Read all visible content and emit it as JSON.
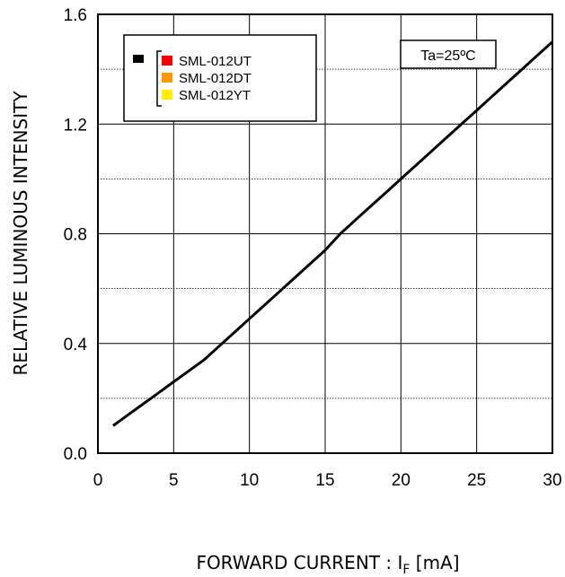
{
  "chart_data": {
    "type": "line",
    "title": "",
    "xlabel_main": "FORWARD CURRENT : I",
    "xlabel_sub": "F",
    "xlabel_unit": " [mA]",
    "ylabel": "RELATIVE LUMINOUS INTENSITY",
    "xlim": [
      0,
      30
    ],
    "ylim": [
      0.0,
      1.6
    ],
    "x_ticks": [
      "0",
      "5",
      "10",
      "15",
      "20",
      "25",
      "30"
    ],
    "y_ticks": [
      "0.0",
      "0.4",
      "0.8",
      "1.2",
      "1.6"
    ],
    "grid": true,
    "series": [
      {
        "x": [
          1,
          2,
          3,
          4,
          5,
          6,
          7,
          8,
          9,
          10,
          11,
          12,
          13,
          14,
          15,
          16,
          17,
          18,
          19,
          20,
          21,
          22,
          23,
          24,
          25,
          26,
          27,
          28,
          29,
          30
        ],
        "y": [
          0.1,
          0.14,
          0.18,
          0.22,
          0.26,
          0.3,
          0.34,
          0.39,
          0.44,
          0.49,
          0.54,
          0.59,
          0.64,
          0.69,
          0.74,
          0.8,
          0.85,
          0.9,
          0.95,
          1.0,
          1.05,
          1.1,
          1.15,
          1.2,
          1.25,
          1.3,
          1.35,
          1.4,
          1.45,
          1.5
        ],
        "color": "#000000"
      }
    ],
    "legend": {
      "placement": "top-left",
      "marker_color": "#000000",
      "entries": [
        {
          "label": "SML-012UT",
          "color": "#ff0000"
        },
        {
          "label": "SML-012DT",
          "color": "#ff9900"
        },
        {
          "label": "SML-012YT",
          "color": "#ffee00"
        }
      ]
    },
    "annotation": "Ta=25ºC"
  }
}
